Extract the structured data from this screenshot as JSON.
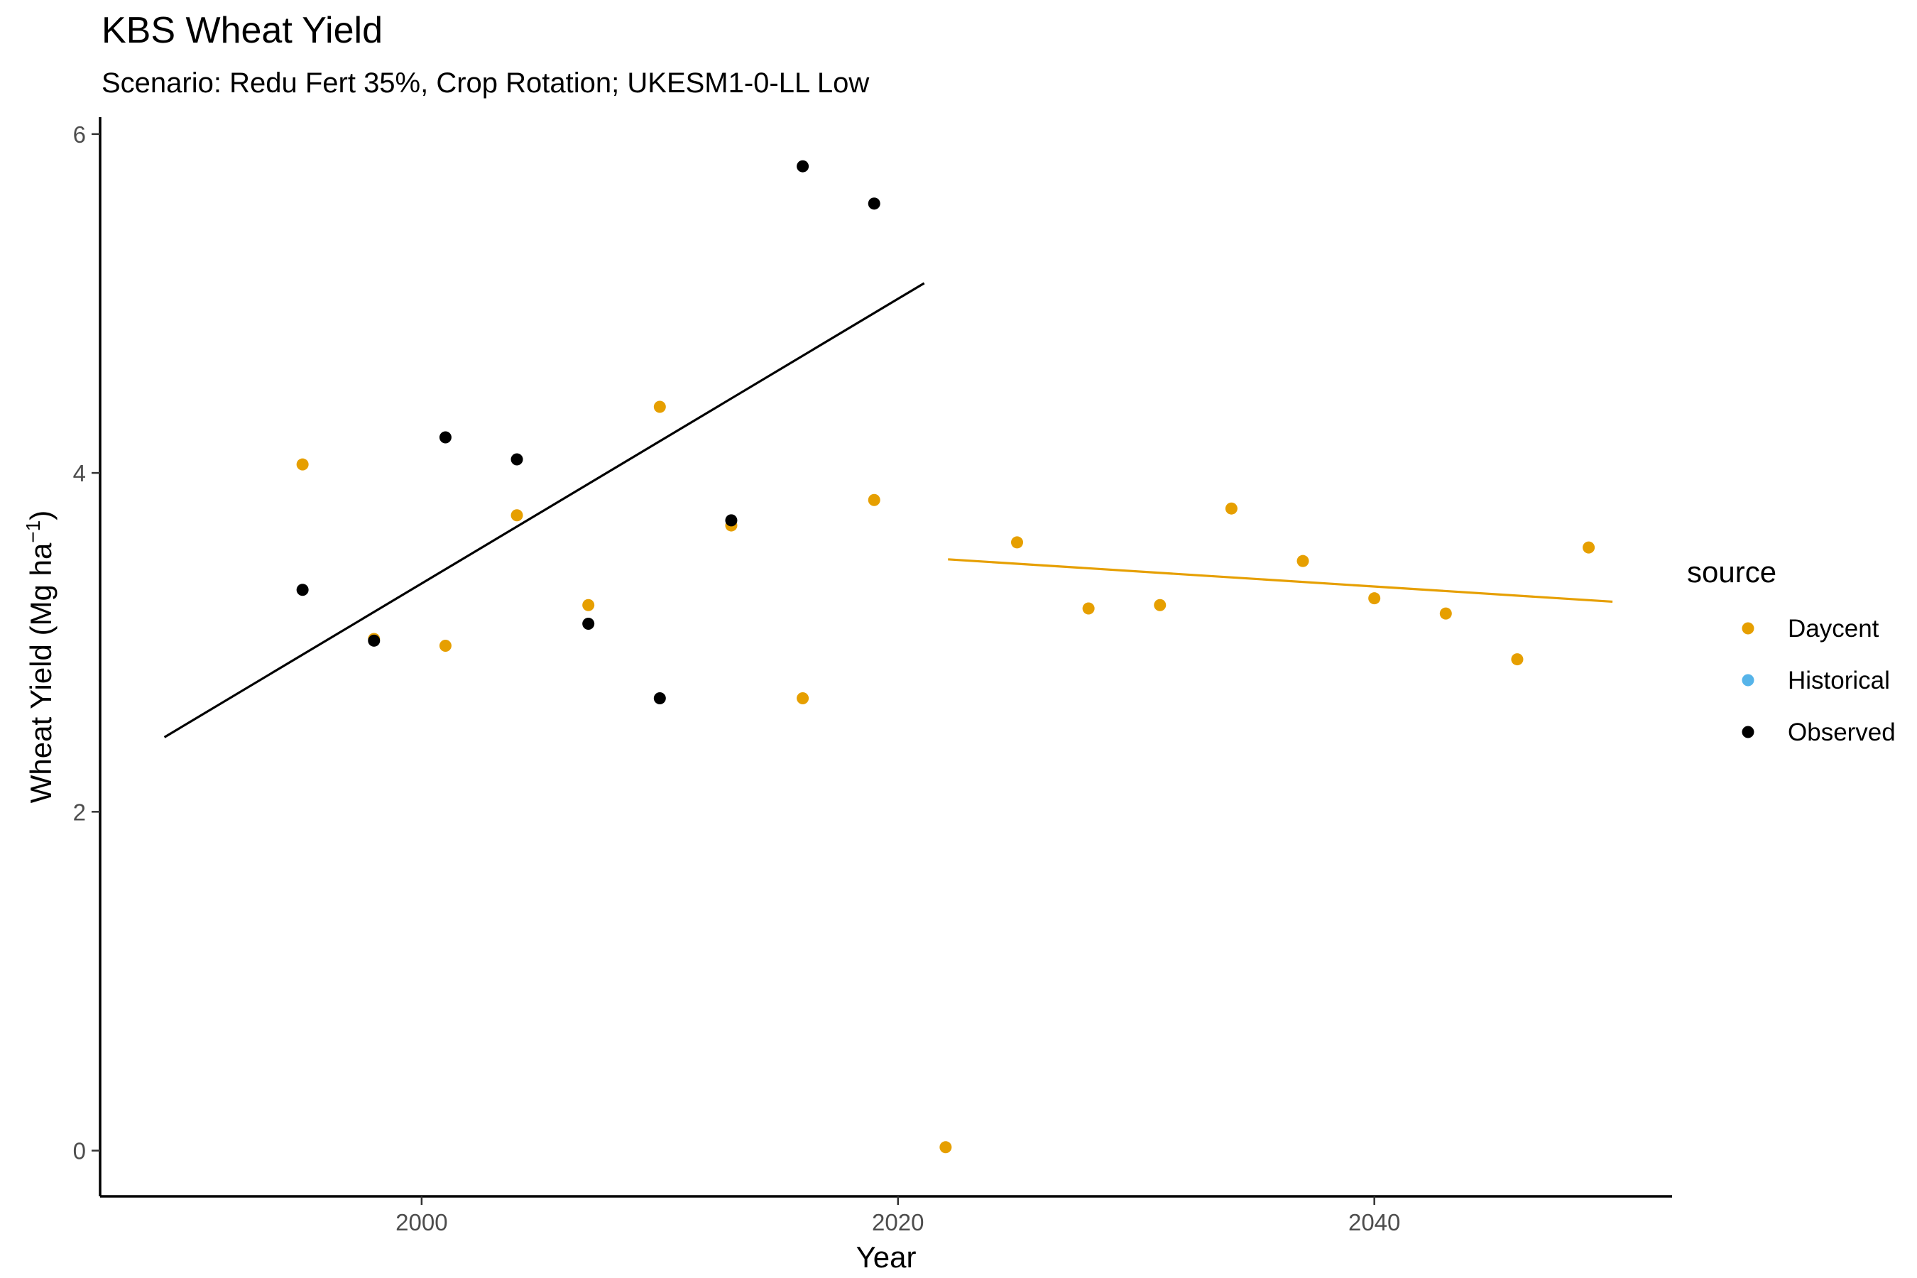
{
  "chart_data": {
    "type": "scatter",
    "title": "KBS Wheat Yield",
    "subtitle": "Scenario: Redu Fert 35%, Crop Rotation; UKESM1-0-LL Low",
    "xlabel": "Year",
    "ylabel": {
      "main": "Wheat Yield (Mg ha",
      "sup": "−1",
      "close": ")"
    },
    "xlim": [
      1986.5,
      2052.5
    ],
    "ylim": [
      -0.27,
      6.1
    ],
    "x_ticks": [
      2000,
      2020,
      2040
    ],
    "x_tick_labels": [
      "2000",
      "2020",
      "2040"
    ],
    "y_ticks": [
      0,
      2,
      4,
      6
    ],
    "y_tick_labels": [
      "0",
      "2",
      "4",
      "6"
    ],
    "grid": false,
    "legend": {
      "title": "source",
      "position": "right",
      "entries": [
        {
          "label": "Daycent",
          "color": "#E69F00"
        },
        {
          "label": "Historical",
          "color": "#56B4E9"
        },
        {
          "label": "Observed",
          "color": "#000000"
        }
      ]
    },
    "series": [
      {
        "name": "Daycent",
        "color": "#E69F00",
        "points": [
          [
            1995,
            4.05
          ],
          [
            1998,
            3.02
          ],
          [
            2001,
            2.98
          ],
          [
            2004,
            3.75
          ],
          [
            2007,
            3.22
          ],
          [
            2010,
            4.39
          ],
          [
            2013,
            3.69
          ],
          [
            2016,
            2.67
          ],
          [
            2019,
            3.84
          ],
          [
            2022,
            0.02
          ],
          [
            2025,
            3.59
          ],
          [
            2028,
            3.2
          ],
          [
            2031,
            3.22
          ],
          [
            2034,
            3.79
          ],
          [
            2037,
            3.48
          ],
          [
            2040,
            3.26
          ],
          [
            2043,
            3.17
          ],
          [
            2046,
            2.9
          ],
          [
            2049,
            3.56
          ]
        ]
      },
      {
        "name": "Observed",
        "color": "#000000",
        "points": [
          [
            1995,
            3.31
          ],
          [
            1998,
            3.01
          ],
          [
            2001,
            4.21
          ],
          [
            2004,
            4.08
          ],
          [
            2007,
            3.11
          ],
          [
            2010,
            2.67
          ],
          [
            2013,
            3.72
          ],
          [
            2016,
            5.81
          ],
          [
            2019,
            5.59
          ]
        ]
      }
    ],
    "trend_lines": [
      {
        "series": "Observed",
        "color": "#000000",
        "x": [
          1989.2,
          2021.1
        ],
        "y": [
          2.44,
          5.12
        ]
      },
      {
        "series": "Daycent",
        "color": "#E69F00",
        "x": [
          2022.1,
          2050.0
        ],
        "y": [
          3.49,
          3.24
        ]
      }
    ]
  }
}
